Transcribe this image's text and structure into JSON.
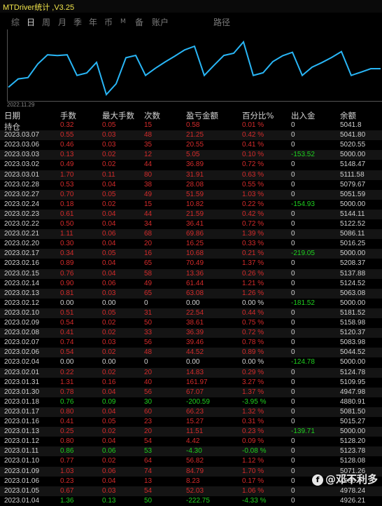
{
  "app": {
    "title": "MTDriver统计 ,V3.25"
  },
  "tabs": [
    "综",
    "日",
    "周",
    "月",
    "季",
    "年",
    "币",
    "M",
    "备",
    "账户",
    "路径"
  ],
  "active_tab": "日",
  "chart": {
    "start_label": "2022.11.29",
    "line_color": "#29b6f6"
  },
  "table": {
    "headers": [
      "日期",
      "手数",
      "最大手数",
      "次数",
      "盈亏金额",
      "百分比%",
      "出入金",
      "余额"
    ],
    "holding": {
      "date": "持仓",
      "lots": "0.32",
      "max": "0.05",
      "count": "15",
      "pnl": "0.58",
      "pct": "0.01 %",
      "flow": "0",
      "bal": "5041.8"
    },
    "rows": [
      [
        "2023.03.07",
        "0.55",
        "0.03",
        "48",
        "21.25",
        "0.42 %",
        "0",
        "5041.80",
        "r"
      ],
      [
        "2023.03.06",
        "0.46",
        "0.03",
        "35",
        "20.55",
        "0.41 %",
        "0",
        "5020.55",
        "r"
      ],
      [
        "2023.03.03",
        "0.13",
        "0.02",
        "12",
        "5.05",
        "0.10 %",
        "-153.52",
        "5000.00",
        "r"
      ],
      [
        "2023.03.02",
        "0.49",
        "0.02",
        "44",
        "36.89",
        "0.72 %",
        "0",
        "5148.47",
        "r"
      ],
      [
        "2023.03.01",
        "1.70",
        "0.11",
        "80",
        "31.91",
        "0.63 %",
        "0",
        "5111.58",
        "r"
      ],
      [
        "2023.02.28",
        "0.53",
        "0.04",
        "38",
        "28.08",
        "0.55 %",
        "0",
        "5079.67",
        "r"
      ],
      [
        "2023.02.27",
        "0.70",
        "0.05",
        "49",
        "51.59",
        "1.03 %",
        "0",
        "5051.59",
        "r"
      ],
      [
        "2023.02.24",
        "0.18",
        "0.02",
        "15",
        "10.82",
        "0.22 %",
        "-154.93",
        "5000.00",
        "r"
      ],
      [
        "2023.02.23",
        "0.61",
        "0.04",
        "44",
        "21.59",
        "0.42 %",
        "0",
        "5144.11",
        "r"
      ],
      [
        "2023.02.22",
        "0.50",
        "0.04",
        "34",
        "36.41",
        "0.72 %",
        "0",
        "5122.52",
        "r"
      ],
      [
        "2023.02.21",
        "1.11",
        "0.06",
        "68",
        "69.86",
        "1.39 %",
        "0",
        "5086.11",
        "r"
      ],
      [
        "2023.02.20",
        "0.30",
        "0.04",
        "20",
        "16.25",
        "0.33 %",
        "0",
        "5016.25",
        "r"
      ],
      [
        "2023.02.17",
        "0.34",
        "0.05",
        "16",
        "10.68",
        "0.21 %",
        "-219.05",
        "5000.00",
        "r"
      ],
      [
        "2023.02.16",
        "0.89",
        "0.04",
        "65",
        "70.49",
        "1.37 %",
        "0",
        "5208.37",
        "r"
      ],
      [
        "2023.02.15",
        "0.76",
        "0.04",
        "58",
        "13.36",
        "0.26 %",
        "0",
        "5137.88",
        "r"
      ],
      [
        "2023.02.14",
        "0.90",
        "0.06",
        "49",
        "61.44",
        "1.21 %",
        "0",
        "5124.52",
        "r"
      ],
      [
        "2023.02.13",
        "0.81",
        "0.03",
        "65",
        "63.08",
        "1.26 %",
        "0",
        "5063.08",
        "r"
      ],
      [
        "2023.02.12",
        "0.00",
        "0.00",
        "0",
        "0.00",
        "0.00 %",
        "-181.52",
        "5000.00",
        "w"
      ],
      [
        "2023.02.10",
        "0.51",
        "0.05",
        "31",
        "22.54",
        "0.44 %",
        "0",
        "5181.52",
        "r"
      ],
      [
        "2023.02.09",
        "0.54",
        "0.02",
        "50",
        "38.61",
        "0.75 %",
        "0",
        "5158.98",
        "r"
      ],
      [
        "2023.02.08",
        "0.41",
        "0.02",
        "33",
        "36.39",
        "0.72 %",
        "0",
        "5120.37",
        "r"
      ],
      [
        "2023.02.07",
        "0.74",
        "0.03",
        "56",
        "39.46",
        "0.78 %",
        "0",
        "5083.98",
        "r"
      ],
      [
        "2023.02.06",
        "0.54",
        "0.02",
        "48",
        "44.52",
        "0.89 %",
        "0",
        "5044.52",
        "r"
      ],
      [
        "2023.02.04",
        "0.00",
        "0.00",
        "0",
        "0.00",
        "0.00 %",
        "-124.78",
        "5000.00",
        "w"
      ],
      [
        "2023.02.01",
        "0.22",
        "0.02",
        "20",
        "14.83",
        "0.29 %",
        "0",
        "5124.78",
        "r"
      ],
      [
        "2023.01.31",
        "1.31",
        "0.16",
        "40",
        "161.97",
        "3.27 %",
        "0",
        "5109.95",
        "r"
      ],
      [
        "2023.01.30",
        "0.78",
        "0.04",
        "56",
        "67.07",
        "1.37 %",
        "0",
        "4947.98",
        "r"
      ],
      [
        "2023.01.18",
        "0.76",
        "0.09",
        "30",
        "-200.59",
        "-3.95 %",
        "0",
        "4880.91",
        "g"
      ],
      [
        "2023.01.17",
        "0.80",
        "0.04",
        "60",
        "66.23",
        "1.32 %",
        "0",
        "5081.50",
        "r"
      ],
      [
        "2023.01.16",
        "0.41",
        "0.05",
        "23",
        "15.27",
        "0.31 %",
        "0",
        "5015.27",
        "r"
      ],
      [
        "2023.01.13",
        "0.25",
        "0.02",
        "20",
        "11.51",
        "0.23 %",
        "-139.71",
        "5000.00",
        "r"
      ],
      [
        "2023.01.12",
        "0.80",
        "0.04",
        "54",
        "4.42",
        "0.09 %",
        "0",
        "5128.20",
        "r"
      ],
      [
        "2023.01.11",
        "0.86",
        "0.06",
        "53",
        "-4.30",
        "-0.08 %",
        "0",
        "5123.78",
        "g"
      ],
      [
        "2023.01.10",
        "0.77",
        "0.02",
        "64",
        "56.82",
        "1.12 %",
        "0",
        "5128.08",
        "r"
      ],
      [
        "2023.01.09",
        "1.03",
        "0.06",
        "74",
        "84.79",
        "1.70 %",
        "0",
        "5071.26",
        "r"
      ],
      [
        "2023.01.06",
        "0.23",
        "0.04",
        "13",
        "8.23",
        "0.17 %",
        "0",
        "4986.47",
        "r"
      ],
      [
        "2023.01.05",
        "0.67",
        "0.03",
        "54",
        "52.03",
        "1.06 %",
        "0",
        "4978.24",
        "r"
      ],
      [
        "2023.01.04",
        "1.36",
        "0.13",
        "50",
        "-222.75",
        "-4.33 %",
        "0",
        "4926.21",
        "g"
      ]
    ]
  },
  "watermark": {
    "text": "@邓不利多",
    "logo": "f"
  }
}
